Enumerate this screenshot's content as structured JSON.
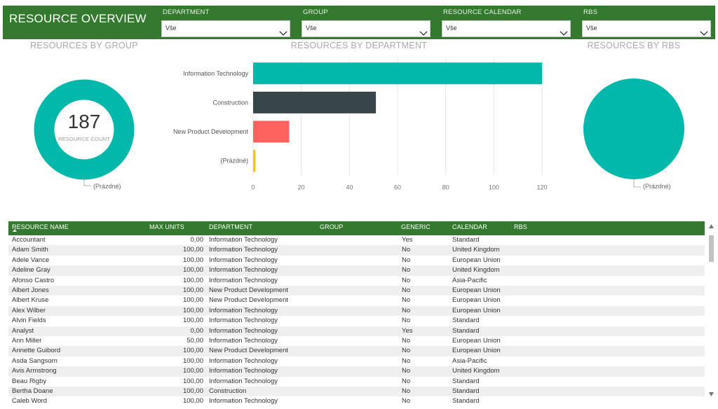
{
  "header": {
    "title": "RESOURCE OVERVIEW",
    "slicers": [
      {
        "label": "DEPARTMENT",
        "value": "Vše"
      },
      {
        "label": "GROUP",
        "value": "Vše"
      },
      {
        "label": "RESOURCE CALENDAR",
        "value": "Vše"
      },
      {
        "label": "RBS",
        "value": "Vše"
      }
    ]
  },
  "group_chart": {
    "title": "RESOURCES BY GROUP",
    "kpi_value": "187",
    "kpi_label": "RESOURCE COUNT",
    "legend": "(Prázdné)",
    "color": "#01b8aa"
  },
  "rbs_chart": {
    "title": "RESOURCES BY RBS",
    "legend": "(Prázdné)",
    "color": "#01b8aa"
  },
  "department_chart": {
    "section_title": "RESOURCES BY DEPARTMENT"
  },
  "chart_data": [
    {
      "type": "bar",
      "orientation": "horizontal",
      "title": "RESOURCES BY DEPARTMENT",
      "categories": [
        "Information Technology",
        "Construction",
        "New Product Development",
        "(Prázdné)"
      ],
      "values": [
        120,
        51,
        15,
        1
      ],
      "colors": [
        "#01b8aa",
        "#374649",
        "#fd625e",
        "#f2c80f"
      ],
      "xlim": [
        0,
        120
      ],
      "x_ticks": [
        0,
        20,
        40,
        60,
        80,
        100,
        120
      ],
      "grid": true,
      "xlabel": "",
      "ylabel": ""
    },
    {
      "type": "pie",
      "title": "RESOURCES BY GROUP",
      "categories": [
        "(Prázdné)"
      ],
      "values": [
        187
      ],
      "colors": [
        "#01b8aa"
      ]
    },
    {
      "type": "pie",
      "title": "RESOURCES BY RBS",
      "categories": [
        "(Prázdné)"
      ],
      "values": [
        187
      ],
      "colors": [
        "#01b8aa"
      ]
    }
  ],
  "table": {
    "columns": [
      "RESOURCE NAME",
      "MAX UNITS",
      "DEPARTMENT",
      "GROUP",
      "GENERIC",
      "CALENDAR",
      "RBS"
    ],
    "rows": [
      [
        "Accountant",
        "0,00",
        "Information Technology",
        "",
        "Yes",
        "Standard",
        ""
      ],
      [
        "Adam Smith",
        "100,00",
        "Information Technology",
        "",
        "No",
        "United Kingdom",
        ""
      ],
      [
        "Adele Vance",
        "100,00",
        "Information Technology",
        "",
        "No",
        "European Union",
        ""
      ],
      [
        "Adeline Gray",
        "100,00",
        "Information Technology",
        "",
        "No",
        "United Kingdom",
        ""
      ],
      [
        "Afonso Castro",
        "100,00",
        "Information Technology",
        "",
        "No",
        "Asia-Pacific",
        ""
      ],
      [
        "Albert Jones",
        "100,00",
        "New Product Development",
        "",
        "No",
        "European Union",
        ""
      ],
      [
        "Albert Kruse",
        "100,00",
        "New Product Development",
        "",
        "No",
        "European Union",
        ""
      ],
      [
        "Alex Wilber",
        "100,00",
        "Information Technology",
        "",
        "No",
        "European Union",
        ""
      ],
      [
        "Alvin Fields",
        "100,00",
        "Information Technology",
        "",
        "No",
        "Standard",
        ""
      ],
      [
        "Analyst",
        "0,00",
        "Information Technology",
        "",
        "Yes",
        "Standard",
        ""
      ],
      [
        "Ann Miller",
        "50,00",
        "Information Technology",
        "",
        "No",
        "European Union",
        ""
      ],
      [
        "Annette Guibord",
        "100,00",
        "New Product Development",
        "",
        "No",
        "European Union",
        ""
      ],
      [
        "Asda Sangsorn",
        "100,00",
        "Information Technology",
        "",
        "No",
        "Asia-Pacific",
        ""
      ],
      [
        "Avis Armstrong",
        "100,00",
        "Information Technology",
        "",
        "No",
        "United Kingdom",
        ""
      ],
      [
        "Beau Rigby",
        "100,00",
        "Information Technology",
        "",
        "No",
        "Standard",
        ""
      ],
      [
        "Bertha Doane",
        "100,00",
        "Construction",
        "",
        "No",
        "Standard",
        ""
      ],
      [
        "Caleb Word",
        "100,00",
        "Information Technology",
        "",
        "No",
        "Standard",
        ""
      ]
    ]
  }
}
